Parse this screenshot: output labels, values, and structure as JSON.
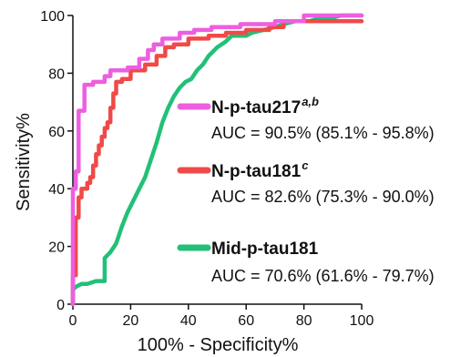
{
  "chart_data": {
    "type": "line",
    "title": "",
    "xlabel": "100% - Specificity%",
    "ylabel": "Sensitivity%",
    "xlim": [
      0,
      100
    ],
    "ylim": [
      0,
      100
    ],
    "x_ticks": [
      "0",
      "20",
      "40",
      "60",
      "80",
      "100"
    ],
    "y_ticks": [
      "0",
      "20",
      "40",
      "60",
      "80",
      "100"
    ],
    "grid": false,
    "series": [
      {
        "name": "N-p-tau217",
        "superscript": "a,b",
        "auc_text": "AUC = 90.5% (85.1% - 95.8%)",
        "color": "#ee5ee0",
        "points": [
          [
            0,
            0
          ],
          [
            0,
            30
          ],
          [
            0,
            40
          ],
          [
            1,
            40
          ],
          [
            1,
            46
          ],
          [
            2,
            46
          ],
          [
            2,
            55
          ],
          [
            2,
            67
          ],
          [
            3,
            67
          ],
          [
            4,
            67
          ],
          [
            4,
            76
          ],
          [
            5,
            76
          ],
          [
            7,
            76
          ],
          [
            7,
            77
          ],
          [
            11,
            77
          ],
          [
            11,
            79
          ],
          [
            13,
            79
          ],
          [
            13,
            81
          ],
          [
            15,
            81
          ],
          [
            19,
            81
          ],
          [
            19,
            82
          ],
          [
            23,
            82
          ],
          [
            23,
            85
          ],
          [
            26,
            85
          ],
          [
            26,
            88
          ],
          [
            28,
            88
          ],
          [
            28,
            90
          ],
          [
            31,
            90
          ],
          [
            31,
            92
          ],
          [
            37,
            92
          ],
          [
            37,
            94
          ],
          [
            42,
            94
          ],
          [
            42,
            95
          ],
          [
            48,
            95
          ],
          [
            48,
            96
          ],
          [
            58,
            96
          ],
          [
            58,
            97
          ],
          [
            70,
            97
          ],
          [
            70,
            98
          ],
          [
            80,
            98
          ],
          [
            80,
            100
          ],
          [
            100,
            100
          ]
        ]
      },
      {
        "name": "N-p-tau181",
        "superscript": "c",
        "auc_text": "AUC = 82.6% (75.3% - 90.0%)",
        "color": "#ef4a48",
        "points": [
          [
            0,
            0
          ],
          [
            0,
            10
          ],
          [
            1,
            10
          ],
          [
            1,
            30
          ],
          [
            2,
            30
          ],
          [
            2,
            37
          ],
          [
            3,
            37
          ],
          [
            3,
            40
          ],
          [
            5,
            40
          ],
          [
            5,
            42
          ],
          [
            6,
            42
          ],
          [
            6,
            44
          ],
          [
            7,
            44
          ],
          [
            7,
            48
          ],
          [
            8,
            48
          ],
          [
            8,
            52
          ],
          [
            9,
            52
          ],
          [
            9,
            55
          ],
          [
            10,
            55
          ],
          [
            10,
            58
          ],
          [
            11,
            58
          ],
          [
            11,
            61
          ],
          [
            12,
            61
          ],
          [
            12,
            63
          ],
          [
            13,
            63
          ],
          [
            13,
            68
          ],
          [
            14,
            68
          ],
          [
            14,
            73
          ],
          [
            15,
            73
          ],
          [
            15,
            77
          ],
          [
            17,
            77
          ],
          [
            17,
            78
          ],
          [
            20,
            78
          ],
          [
            20,
            81
          ],
          [
            25,
            81
          ],
          [
            25,
            83
          ],
          [
            29,
            83
          ],
          [
            29,
            86
          ],
          [
            32,
            86
          ],
          [
            32,
            89
          ],
          [
            35,
            89
          ],
          [
            35,
            90
          ],
          [
            40,
            90
          ],
          [
            40,
            92
          ],
          [
            47,
            92
          ],
          [
            47,
            93
          ],
          [
            53,
            93
          ],
          [
            53,
            94
          ],
          [
            60,
            94
          ],
          [
            60,
            95
          ],
          [
            68,
            95
          ],
          [
            68,
            96
          ],
          [
            73,
            96
          ],
          [
            73,
            98
          ],
          [
            100,
            98
          ]
        ]
      },
      {
        "name": "Mid-p-tau181",
        "superscript": "",
        "auc_text": "AUC = 70.6% (61.6% - 79.7%)",
        "color": "#22c078",
        "points": [
          [
            0,
            0
          ],
          [
            0,
            5
          ],
          [
            1,
            6
          ],
          [
            3,
            7
          ],
          [
            5,
            7
          ],
          [
            8,
            8
          ],
          [
            11,
            8
          ],
          [
            11,
            16
          ],
          [
            13,
            18
          ],
          [
            15,
            21
          ],
          [
            17,
            27
          ],
          [
            19,
            32
          ],
          [
            21,
            36
          ],
          [
            23,
            40
          ],
          [
            25,
            44
          ],
          [
            27,
            50
          ],
          [
            29,
            56
          ],
          [
            31,
            63
          ],
          [
            33,
            68
          ],
          [
            35,
            72
          ],
          [
            37,
            75
          ],
          [
            39,
            77
          ],
          [
            41,
            78
          ],
          [
            43,
            81
          ],
          [
            45,
            83
          ],
          [
            47,
            86
          ],
          [
            50,
            89
          ],
          [
            53,
            91
          ],
          [
            55,
            93
          ],
          [
            60,
            93
          ],
          [
            62,
            94
          ],
          [
            66,
            95
          ],
          [
            70,
            96
          ],
          [
            73,
            97
          ],
          [
            77,
            98
          ],
          [
            82,
            98
          ],
          [
            85,
            99
          ],
          [
            89,
            99
          ],
          [
            93,
            100
          ],
          [
            100,
            100
          ]
        ]
      }
    ]
  }
}
